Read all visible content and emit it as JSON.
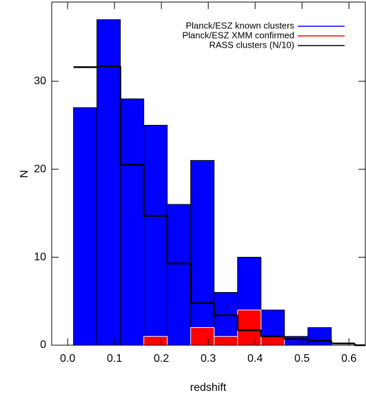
{
  "chart_data": {
    "type": "histogram",
    "xlabel": "redshift",
    "ylabel": "N",
    "xlim": [
      -0.034,
      0.635
    ],
    "ylim": [
      0,
      39
    ],
    "xticks": [
      {
        "value": 0,
        "label": "0.0"
      },
      {
        "value": 0.1,
        "label": "0.1"
      },
      {
        "value": 0.2,
        "label": "0.2"
      },
      {
        "value": 0.3,
        "label": "0.3"
      },
      {
        "value": 0.4,
        "label": "0.4"
      },
      {
        "value": 0.5,
        "label": "0.5"
      },
      {
        "value": 0.6,
        "label": "0.6"
      }
    ],
    "yticks": [
      0,
      10,
      20,
      30
    ],
    "legend": "upper right",
    "series": [
      {
        "name": "Planck/ESZ known clusters",
        "color": "#0000ff",
        "style": "bar",
        "bins": [
          0.0125,
          0.0625,
          0.1125,
          0.1625,
          0.2125,
          0.2625,
          0.3125,
          0.3625,
          0.4125,
          0.4625,
          0.5125,
          0.5625
        ],
        "values": [
          27,
          37,
          28,
          25,
          16,
          21,
          6,
          10,
          4,
          1,
          2
        ]
      },
      {
        "name": "Planck/ESZ XMM confirmed",
        "color": "#ff0000",
        "style": "bar",
        "bins": [
          0.1625,
          0.2125,
          0.2625,
          0.3125,
          0.3625,
          0.4125,
          0.4625
        ],
        "values": [
          1,
          0,
          2,
          1,
          4,
          1
        ]
      },
      {
        "name": "RASS clusters (N/10)",
        "color": "#000000",
        "style": "step",
        "bins": [
          0.0125,
          0.0625,
          0.1125,
          0.1625,
          0.2125,
          0.2625,
          0.3125,
          0.3625,
          0.4125,
          0.4625,
          0.5125,
          0.5625,
          0.6125,
          0.635
        ],
        "values": [
          31.6,
          31.7,
          20.5,
          14.7,
          9.3,
          4.8,
          3.4,
          1.7,
          1.0,
          0.7,
          0.5,
          0.2,
          0
        ]
      }
    ]
  }
}
